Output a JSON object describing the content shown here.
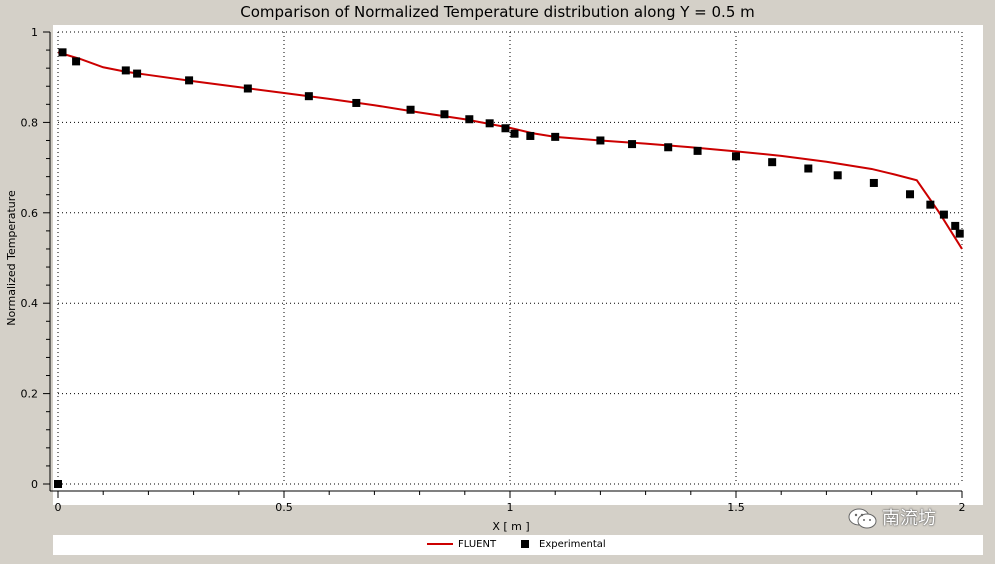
{
  "chart_data": {
    "type": "line",
    "title": "Comparison of Normalized Temperature distribution along Y = 0.5 m",
    "xlabel": "X [ m ]",
    "ylabel": "Normalized Temperature",
    "xlim": [
      0,
      2
    ],
    "ylim": [
      0,
      1
    ],
    "x_ticks": [
      "0",
      "0.5",
      "1",
      "1.5",
      "2"
    ],
    "y_ticks": [
      "0",
      "0.2",
      "0.4",
      "0.6",
      "0.8",
      "1"
    ],
    "grid": true,
    "legend_position": "bottom",
    "series": [
      {
        "name": "FLUENT",
        "style": "line",
        "color": "#cc0000",
        "x": [
          0.0,
          0.05,
          0.1,
          0.15,
          0.2,
          0.3,
          0.4,
          0.5,
          0.6,
          0.7,
          0.8,
          0.9,
          1.0,
          1.05,
          1.1,
          1.2,
          1.3,
          1.4,
          1.5,
          1.6,
          1.7,
          1.8,
          1.85,
          1.9,
          1.95,
          2.0
        ],
        "y": [
          0.955,
          0.94,
          0.922,
          0.912,
          0.905,
          0.891,
          0.878,
          0.865,
          0.852,
          0.838,
          0.822,
          0.807,
          0.788,
          0.776,
          0.768,
          0.76,
          0.753,
          0.745,
          0.736,
          0.726,
          0.713,
          0.697,
          0.685,
          0.672,
          0.6,
          0.52
        ]
      },
      {
        "name": "Experimental",
        "style": "marker",
        "marker": "square",
        "color": "#000000",
        "x": [
          0.0,
          0.01,
          0.04,
          0.15,
          0.175,
          0.29,
          0.42,
          0.555,
          0.66,
          0.78,
          0.855,
          0.91,
          0.955,
          0.99,
          1.01,
          1.045,
          1.1,
          1.2,
          1.27,
          1.35,
          1.415,
          1.5,
          1.58,
          1.66,
          1.725,
          1.805,
          1.885,
          1.93,
          1.96,
          1.985,
          1.995
        ],
        "y": [
          0.0,
          0.955,
          0.935,
          0.915,
          0.908,
          0.893,
          0.875,
          0.858,
          0.843,
          0.828,
          0.818,
          0.807,
          0.798,
          0.787,
          0.775,
          0.77,
          0.768,
          0.76,
          0.752,
          0.745,
          0.737,
          0.725,
          0.712,
          0.698,
          0.683,
          0.666,
          0.641,
          0.618,
          0.596,
          0.571,
          0.554
        ]
      }
    ]
  },
  "watermark": {
    "text": "南流坊",
    "icon": "wechat-icon"
  }
}
